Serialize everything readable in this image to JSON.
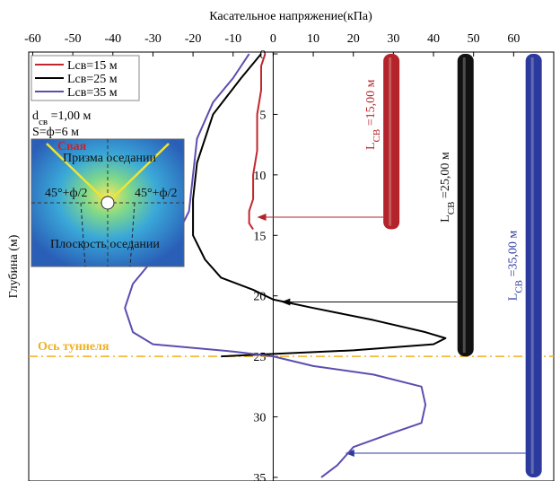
{
  "chart_data": {
    "type": "line",
    "x_label": "Касательное напряжение(кПа)",
    "y_label": "Глубина (м)",
    "xlim": [
      -61,
      70
    ],
    "ylim": [
      -0.15,
      35.3
    ],
    "xticks": [
      -60,
      -50,
      -40,
      -30,
      -20,
      -10,
      0,
      10,
      20,
      30,
      40,
      50,
      60
    ],
    "yticks": [
      0,
      5,
      10,
      15,
      20,
      25,
      30,
      35
    ],
    "y_inverted": true,
    "legend": "upper left",
    "series": [
      {
        "name": "Lсв=15 м",
        "color": "#c1272d",
        "x": [
          -2,
          -3,
          -3,
          -4,
          -4,
          -5,
          -5,
          -6,
          -6,
          -5
        ],
        "y": [
          0,
          1,
          3,
          5,
          8,
          10,
          12,
          13,
          14,
          14.5
        ]
      },
      {
        "name": "Lсв=25 м",
        "color": "#000000",
        "x": [
          -3,
          -8,
          -15,
          -19,
          -20,
          -20,
          -17,
          -13,
          -5,
          0,
          10,
          25,
          38,
          43,
          40,
          20,
          0,
          -13
        ],
        "y": [
          0,
          2,
          5,
          9,
          12,
          15,
          17,
          18.5,
          19.5,
          20.3,
          21,
          22,
          23,
          23.5,
          24,
          24.5,
          24.8,
          25
        ]
      },
      {
        "name": "Lсв=35 м",
        "color": "#5a4eb0",
        "x": [
          -6,
          -10,
          -15,
          -19,
          -20,
          -21,
          -24,
          -30,
          -35,
          -37,
          -35,
          -30,
          -10,
          0,
          10,
          25,
          37,
          38,
          37,
          30,
          20,
          16,
          12
        ],
        "y": [
          0,
          2,
          4,
          7,
          10,
          13,
          15,
          17,
          19,
          21,
          23,
          24,
          24.6,
          25,
          25.8,
          26.5,
          27.5,
          29,
          30.5,
          31.3,
          32.5,
          34,
          35
        ]
      }
    ],
    "piles": [
      {
        "label_parts": [
          "L",
          "CB",
          " =15,00 м"
        ],
        "x": 29.5,
        "length": 14.5,
        "color": "#b3232a",
        "arrow_depth": 13.5,
        "arrow_x": -4
      },
      {
        "label_parts": [
          "L",
          "CB",
          " =25,00 м"
        ],
        "x": 48,
        "length": 25,
        "color": "#111111",
        "arrow_depth": 20.5,
        "arrow_x": 2
      },
      {
        "label_parts": [
          "L",
          "CB",
          " =35,00 м"
        ],
        "x": 65,
        "length": 35,
        "color": "#2b3a9c",
        "arrow_depth": 33,
        "arrow_x": 18
      }
    ],
    "tunnel_axis": {
      "label": "Ось туннеля",
      "depth": 25,
      "color": "#f0b020"
    },
    "params": {
      "d_parts": [
        "d",
        "св",
        " =1,00 м"
      ],
      "s": "S=ф=6 м"
    },
    "inset": {
      "labels": [
        "Свая",
        "Призма оседании",
        "45°+ф/2",
        "45°+ф/2",
        "Плоскость оседании"
      ]
    }
  }
}
